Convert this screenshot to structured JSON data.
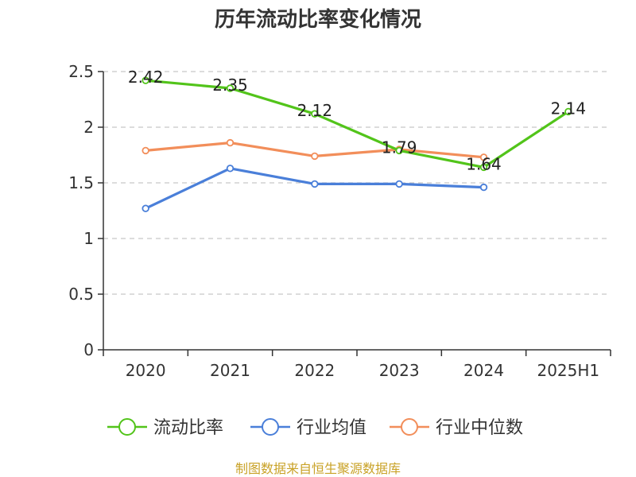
{
  "chart_data": {
    "type": "line",
    "title": "历年流动比率变化情况",
    "categories": [
      "2020",
      "2021",
      "2022",
      "2023",
      "2024",
      "2025H1"
    ],
    "ylim": [
      0,
      2.5
    ],
    "yticks": [
      "0",
      "0.5",
      "1",
      "1.5",
      "2",
      "2.5"
    ],
    "grid": true,
    "legend_position": "bottom",
    "series": [
      {
        "name": "流动比率",
        "color": "#52c41a",
        "values": [
          2.42,
          2.35,
          2.12,
          1.79,
          1.64,
          2.14
        ],
        "labels": [
          "2.42",
          "2.35",
          "2.12",
          "1.79",
          "1.64",
          "2.14"
        ]
      },
      {
        "name": "行业均值",
        "color": "#4a7fd9",
        "values": [
          1.27,
          1.63,
          1.49,
          1.49,
          1.46,
          null
        ]
      },
      {
        "name": "行业中位数",
        "color": "#f28e5a",
        "values": [
          1.79,
          1.86,
          1.74,
          1.8,
          1.73,
          null
        ]
      }
    ]
  },
  "source": "制图数据来自恒生聚源数据库"
}
